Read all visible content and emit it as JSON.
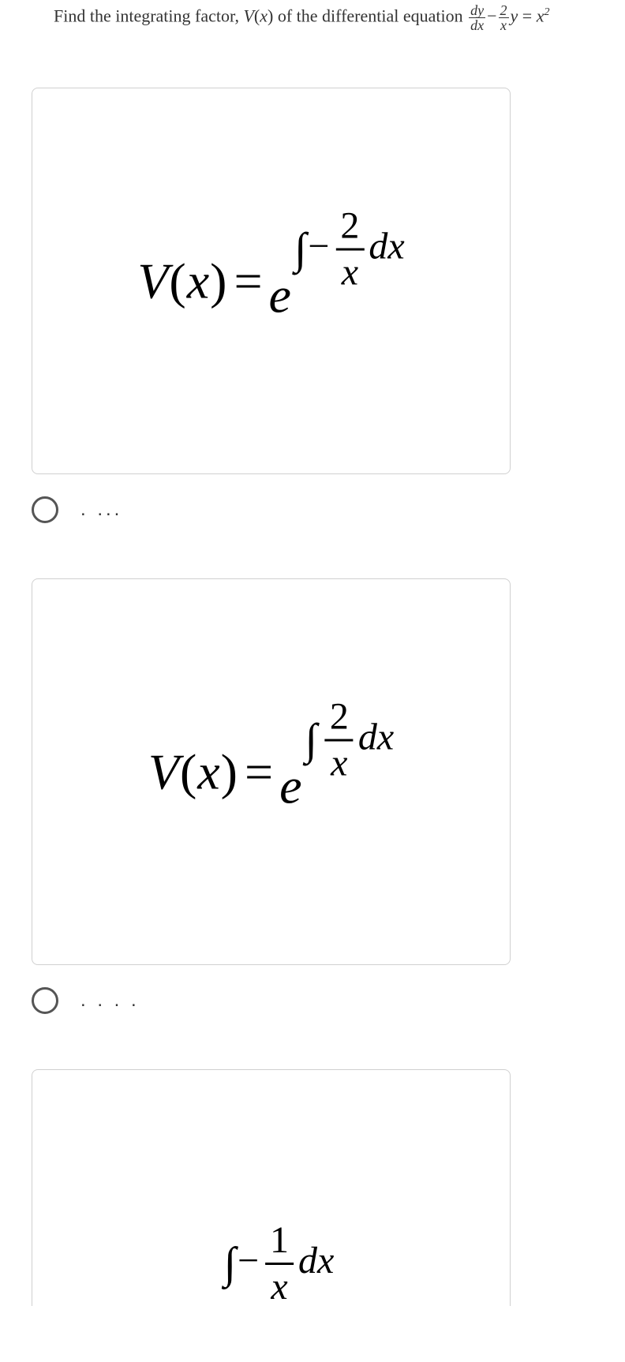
{
  "question": {
    "prefix": "Find the integrating factor, ",
    "vfun": "V",
    "vfun_arg_open": "(",
    "vfun_var": "x",
    "vfun_arg_close": ")",
    "mid": " of the differential equation ",
    "frac1_num": "dy",
    "frac1_den": "dx",
    "minus": "−",
    "frac2_num": "2",
    "frac2_den": "x",
    "yvar": "y",
    "equals": " = ",
    "xvar": "x",
    "sq": "2"
  },
  "options": [
    {
      "lhs_V": "V",
      "lhs_open": "(",
      "lhs_x": "x",
      "lhs_close": ")",
      "eq": "=",
      "e": "e",
      "int": "∫",
      "sign": "−",
      "frac_num": "2",
      "frac_den": "x",
      "dx": "dx",
      "label": ". ..."
    },
    {
      "lhs_V": "V",
      "lhs_open": "(",
      "lhs_x": "x",
      "lhs_close": ")",
      "eq": "=",
      "e": "e",
      "int": "∫",
      "sign": "",
      "frac_num": "2",
      "frac_den": "x",
      "dx": "dx",
      "label": ". . . ."
    },
    {
      "lhs_V": "",
      "lhs_open": "",
      "lhs_x": "",
      "lhs_close": "",
      "eq": "",
      "e": "",
      "int": "∫",
      "sign": "−",
      "frac_num": "1",
      "frac_den": "x",
      "dx": "dx",
      "label": ""
    }
  ],
  "colors": {
    "card_border": "#d0d0d0",
    "radio_border": "#555555",
    "text": "#333333"
  }
}
